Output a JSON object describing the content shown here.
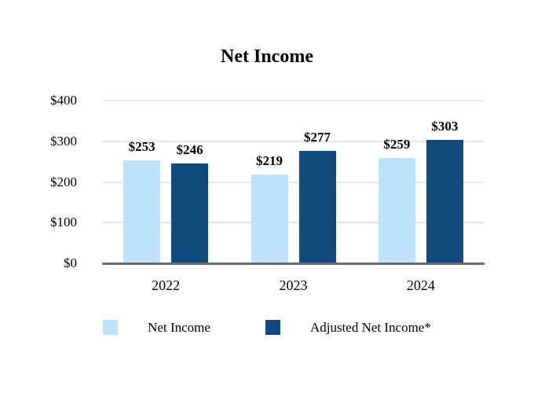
{
  "chart_data": {
    "type": "bar",
    "title": "Net Income",
    "categories": [
      "2022",
      "2023",
      "2024"
    ],
    "series": [
      {
        "name": "Net Income",
        "color": "#bfe3fa",
        "values": [
          253,
          219,
          259
        ]
      },
      {
        "name": "Adjusted Net Income*",
        "color": "#114a7c",
        "values": [
          246,
          277,
          303
        ]
      }
    ],
    "value_prefix": "$",
    "yticks": [
      {
        "value": 0,
        "label": "$0"
      },
      {
        "value": 100,
        "label": "$100"
      },
      {
        "value": 200,
        "label": "$200"
      },
      {
        "value": 300,
        "label": "$300"
      },
      {
        "value": 400,
        "label": "$400"
      }
    ],
    "ylim": [
      0,
      400
    ],
    "grid": true,
    "legend_position": "bottom",
    "colors": {
      "gridline": "#e6e6e6",
      "axis_line": "#6b6b6b",
      "text": "#000000",
      "background": "#ffffff"
    }
  }
}
